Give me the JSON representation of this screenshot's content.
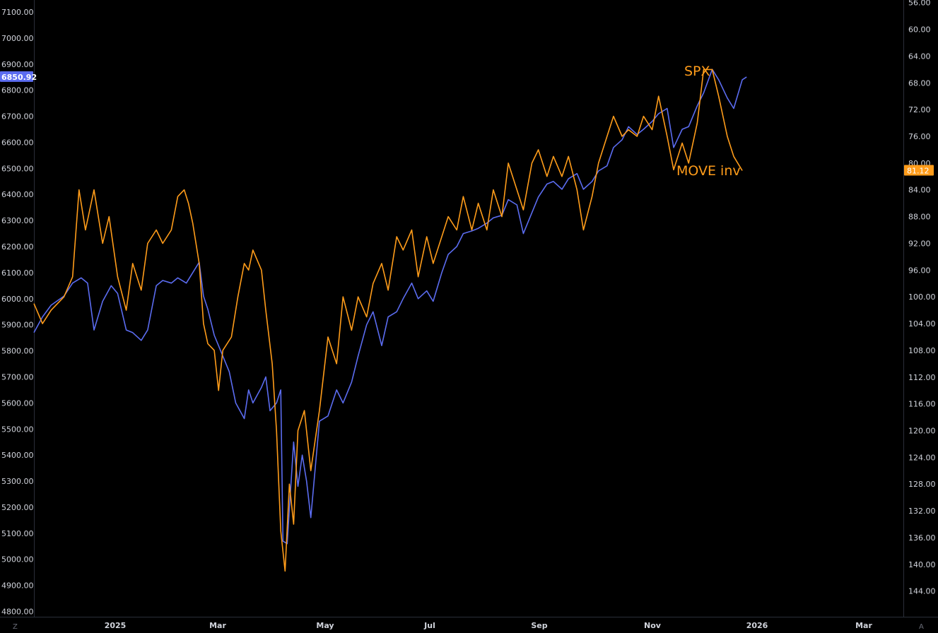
{
  "chart_data": {
    "type": "line",
    "title": "",
    "xlabel": "",
    "ylabel": "",
    "x_ticks": [
      "2025",
      "Mar",
      "May",
      "Jul",
      "Sep",
      "Nov",
      "2026",
      "Mar"
    ],
    "left_axis": {
      "ylim": [
        4780,
        7160
      ],
      "ticks": [
        "7100.00",
        "7000.00",
        "6900.00",
        "6800.00",
        "6700.00",
        "6600.00",
        "6500.00",
        "6400.00",
        "6300.00",
        "6200.00",
        "6100.00",
        "6000.00",
        "5900.00",
        "5800.00",
        "5700.00",
        "5600.00",
        "5500.00",
        "5400.00",
        "5300.00",
        "5200.00",
        "5100.00",
        "5000.00",
        "4900.00",
        "4800.00"
      ],
      "current_value_label": "6850.92",
      "current_value": 6850.92
    },
    "right_axis": {
      "inverted": true,
      "ylim": [
        56,
        148
      ],
      "ticks": [
        "56.00",
        "60.00",
        "64.00",
        "68.00",
        "72.00",
        "76.00",
        "80.00",
        "84.00",
        "88.00",
        "92.00",
        "96.00",
        "100.00",
        "104.00",
        "108.00",
        "112.00",
        "116.00",
        "120.00",
        "124.00",
        "128.00",
        "132.00",
        "136.00",
        "140.00",
        "144.00"
      ],
      "current_value_label": "81.12",
      "current_value": 81.12
    },
    "corner_labels": {
      "left": "Z",
      "right": "A"
    },
    "series": [
      {
        "name": "SPX",
        "color": "#5b6cf0",
        "axis": "left",
        "points": [
          [
            "2024-12-16",
            5870
          ],
          [
            "2024-12-20",
            5930
          ],
          [
            "2024-12-24",
            5975
          ],
          [
            "2024-12-30",
            6010
          ],
          [
            "2025-01-03",
            6060
          ],
          [
            "2025-01-07",
            6080
          ],
          [
            "2025-01-10",
            6060
          ],
          [
            "2025-01-13",
            5880
          ],
          [
            "2025-01-17",
            5990
          ],
          [
            "2025-01-21",
            6050
          ],
          [
            "2025-01-24",
            6020
          ],
          [
            "2025-01-28",
            5880
          ],
          [
            "2025-01-31",
            5870
          ],
          [
            "2025-02-04",
            5840
          ],
          [
            "2025-02-07",
            5880
          ],
          [
            "2025-02-11",
            6050
          ],
          [
            "2025-02-14",
            6070
          ],
          [
            "2025-02-18",
            6060
          ],
          [
            "2025-02-21",
            6080
          ],
          [
            "2025-02-25",
            6060
          ],
          [
            "2025-02-28",
            6100
          ],
          [
            "2025-03-03",
            6140
          ],
          [
            "2025-03-05",
            6010
          ],
          [
            "2025-03-07",
            5960
          ],
          [
            "2025-03-10",
            5860
          ],
          [
            "2025-03-13",
            5800
          ],
          [
            "2025-03-17",
            5720
          ],
          [
            "2025-03-20",
            5600
          ],
          [
            "2025-03-24",
            5540
          ],
          [
            "2025-03-26",
            5650
          ],
          [
            "2025-03-28",
            5600
          ],
          [
            "2025-04-01",
            5660
          ],
          [
            "2025-04-03",
            5700
          ],
          [
            "2025-04-05",
            5570
          ],
          [
            "2025-04-08",
            5600
          ],
          [
            "2025-04-10",
            5650
          ],
          [
            "2025-04-11",
            5070
          ],
          [
            "2025-04-13",
            5060
          ],
          [
            "2025-04-16",
            5450
          ],
          [
            "2025-04-18",
            5280
          ],
          [
            "2025-04-20",
            5400
          ],
          [
            "2025-04-22",
            5300
          ],
          [
            "2025-04-24",
            5160
          ],
          [
            "2025-04-28",
            5530
          ],
          [
            "2025-05-02",
            5550
          ],
          [
            "2025-05-06",
            5650
          ],
          [
            "2025-05-09",
            5600
          ],
          [
            "2025-05-13",
            5680
          ],
          [
            "2025-05-16",
            5780
          ],
          [
            "2025-05-20",
            5900
          ],
          [
            "2025-05-23",
            5950
          ],
          [
            "2025-05-27",
            5820
          ],
          [
            "2025-05-30",
            5930
          ],
          [
            "2025-06-03",
            5950
          ],
          [
            "2025-06-06",
            6000
          ],
          [
            "2025-06-10",
            6060
          ],
          [
            "2025-06-13",
            6000
          ],
          [
            "2025-06-17",
            6030
          ],
          [
            "2025-06-20",
            5990
          ],
          [
            "2025-06-24",
            6100
          ],
          [
            "2025-06-27",
            6170
          ],
          [
            "2025-07-01",
            6200
          ],
          [
            "2025-07-04",
            6250
          ],
          [
            "2025-07-08",
            6260
          ],
          [
            "2025-07-11",
            6270
          ],
          [
            "2025-07-15",
            6290
          ],
          [
            "2025-07-18",
            6310
          ],
          [
            "2025-07-22",
            6320
          ],
          [
            "2025-07-25",
            6380
          ],
          [
            "2025-07-29",
            6360
          ],
          [
            "2025-08-01",
            6250
          ],
          [
            "2025-08-05",
            6330
          ],
          [
            "2025-08-08",
            6390
          ],
          [
            "2025-08-12",
            6440
          ],
          [
            "2025-08-15",
            6450
          ],
          [
            "2025-08-19",
            6420
          ],
          [
            "2025-08-22",
            6460
          ],
          [
            "2025-08-26",
            6480
          ],
          [
            "2025-08-29",
            6420
          ],
          [
            "2025-09-02",
            6450
          ],
          [
            "2025-09-05",
            6490
          ],
          [
            "2025-09-09",
            6510
          ],
          [
            "2025-09-12",
            6580
          ],
          [
            "2025-09-16",
            6610
          ],
          [
            "2025-09-19",
            6660
          ],
          [
            "2025-09-23",
            6630
          ],
          [
            "2025-09-26",
            6650
          ],
          [
            "2025-09-30",
            6680
          ],
          [
            "2025-10-03",
            6710
          ],
          [
            "2025-10-07",
            6730
          ],
          [
            "2025-10-10",
            6580
          ],
          [
            "2025-10-14",
            6650
          ],
          [
            "2025-10-17",
            6660
          ],
          [
            "2025-10-21",
            6740
          ],
          [
            "2025-10-24",
            6790
          ],
          [
            "2025-10-28",
            6880
          ],
          [
            "2025-10-31",
            6840
          ],
          [
            "2025-11-04",
            6770
          ],
          [
            "2025-11-07",
            6730
          ],
          [
            "2025-11-11",
            6840
          ],
          [
            "2025-11-13",
            6850.92
          ]
        ]
      },
      {
        "name": "MOVE inv",
        "color": "#ff9c1a",
        "axis": "right",
        "points": [
          [
            "2024-12-16",
            101
          ],
          [
            "2024-12-20",
            104
          ],
          [
            "2024-12-24",
            102
          ],
          [
            "2024-12-30",
            100
          ],
          [
            "2025-01-03",
            97
          ],
          [
            "2025-01-06",
            84
          ],
          [
            "2025-01-09",
            90
          ],
          [
            "2025-01-13",
            84
          ],
          [
            "2025-01-17",
            92
          ],
          [
            "2025-01-20",
            88
          ],
          [
            "2025-01-24",
            97
          ],
          [
            "2025-01-28",
            102
          ],
          [
            "2025-01-31",
            95
          ],
          [
            "2025-02-04",
            99
          ],
          [
            "2025-02-07",
            92
          ],
          [
            "2025-02-11",
            90
          ],
          [
            "2025-02-14",
            92
          ],
          [
            "2025-02-18",
            90
          ],
          [
            "2025-02-21",
            85
          ],
          [
            "2025-02-24",
            84
          ],
          [
            "2025-02-26",
            86
          ],
          [
            "2025-02-28",
            89
          ],
          [
            "2025-03-03",
            95
          ],
          [
            "2025-03-05",
            104
          ],
          [
            "2025-03-07",
            107
          ],
          [
            "2025-03-10",
            108
          ],
          [
            "2025-03-12",
            114
          ],
          [
            "2025-03-14",
            108
          ],
          [
            "2025-03-18",
            106
          ],
          [
            "2025-03-21",
            100
          ],
          [
            "2025-03-24",
            95
          ],
          [
            "2025-03-26",
            96
          ],
          [
            "2025-03-28",
            93
          ],
          [
            "2025-04-01",
            96
          ],
          [
            "2025-04-03",
            102
          ],
          [
            "2025-04-06",
            110
          ],
          [
            "2025-04-08",
            120
          ],
          [
            "2025-04-10",
            135
          ],
          [
            "2025-04-12",
            141
          ],
          [
            "2025-04-14",
            128
          ],
          [
            "2025-04-16",
            134
          ],
          [
            "2025-04-18",
            120
          ],
          [
            "2025-04-21",
            117
          ],
          [
            "2025-04-24",
            126
          ],
          [
            "2025-04-28",
            117
          ],
          [
            "2025-05-02",
            106
          ],
          [
            "2025-05-06",
            110
          ],
          [
            "2025-05-09",
            100
          ],
          [
            "2025-05-13",
            105
          ],
          [
            "2025-05-16",
            100
          ],
          [
            "2025-05-20",
            103
          ],
          [
            "2025-05-23",
            98
          ],
          [
            "2025-05-27",
            95
          ],
          [
            "2025-05-30",
            99
          ],
          [
            "2025-06-03",
            91
          ],
          [
            "2025-06-06",
            93
          ],
          [
            "2025-06-10",
            90
          ],
          [
            "2025-06-13",
            97
          ],
          [
            "2025-06-17",
            91
          ],
          [
            "2025-06-20",
            95
          ],
          [
            "2025-06-24",
            91
          ],
          [
            "2025-06-27",
            88
          ],
          [
            "2025-07-01",
            90
          ],
          [
            "2025-07-04",
            85
          ],
          [
            "2025-07-08",
            90
          ],
          [
            "2025-07-11",
            86
          ],
          [
            "2025-07-15",
            90
          ],
          [
            "2025-07-18",
            84
          ],
          [
            "2025-07-22",
            88
          ],
          [
            "2025-07-25",
            80
          ],
          [
            "2025-07-29",
            84
          ],
          [
            "2025-08-01",
            87
          ],
          [
            "2025-08-05",
            80
          ],
          [
            "2025-08-08",
            78
          ],
          [
            "2025-08-12",
            82
          ],
          [
            "2025-08-15",
            79
          ],
          [
            "2025-08-19",
            82
          ],
          [
            "2025-08-22",
            79
          ],
          [
            "2025-08-26",
            84
          ],
          [
            "2025-08-29",
            90
          ],
          [
            "2025-09-02",
            85
          ],
          [
            "2025-09-05",
            80
          ],
          [
            "2025-09-09",
            76
          ],
          [
            "2025-09-12",
            73
          ],
          [
            "2025-09-16",
            76
          ],
          [
            "2025-09-19",
            75
          ],
          [
            "2025-09-23",
            76
          ],
          [
            "2025-09-26",
            73
          ],
          [
            "2025-09-30",
            75
          ],
          [
            "2025-10-03",
            70
          ],
          [
            "2025-10-07",
            76
          ],
          [
            "2025-10-10",
            81
          ],
          [
            "2025-10-14",
            77
          ],
          [
            "2025-10-17",
            80
          ],
          [
            "2025-10-21",
            74
          ],
          [
            "2025-10-24",
            66
          ],
          [
            "2025-10-28",
            66
          ],
          [
            "2025-10-31",
            70
          ],
          [
            "2025-11-04",
            76
          ],
          [
            "2025-11-07",
            79
          ],
          [
            "2025-11-11",
            81.12
          ]
        ]
      }
    ],
    "annotations": [
      "SPX",
      "MOVE inv"
    ],
    "grid": false,
    "legend": "none"
  }
}
